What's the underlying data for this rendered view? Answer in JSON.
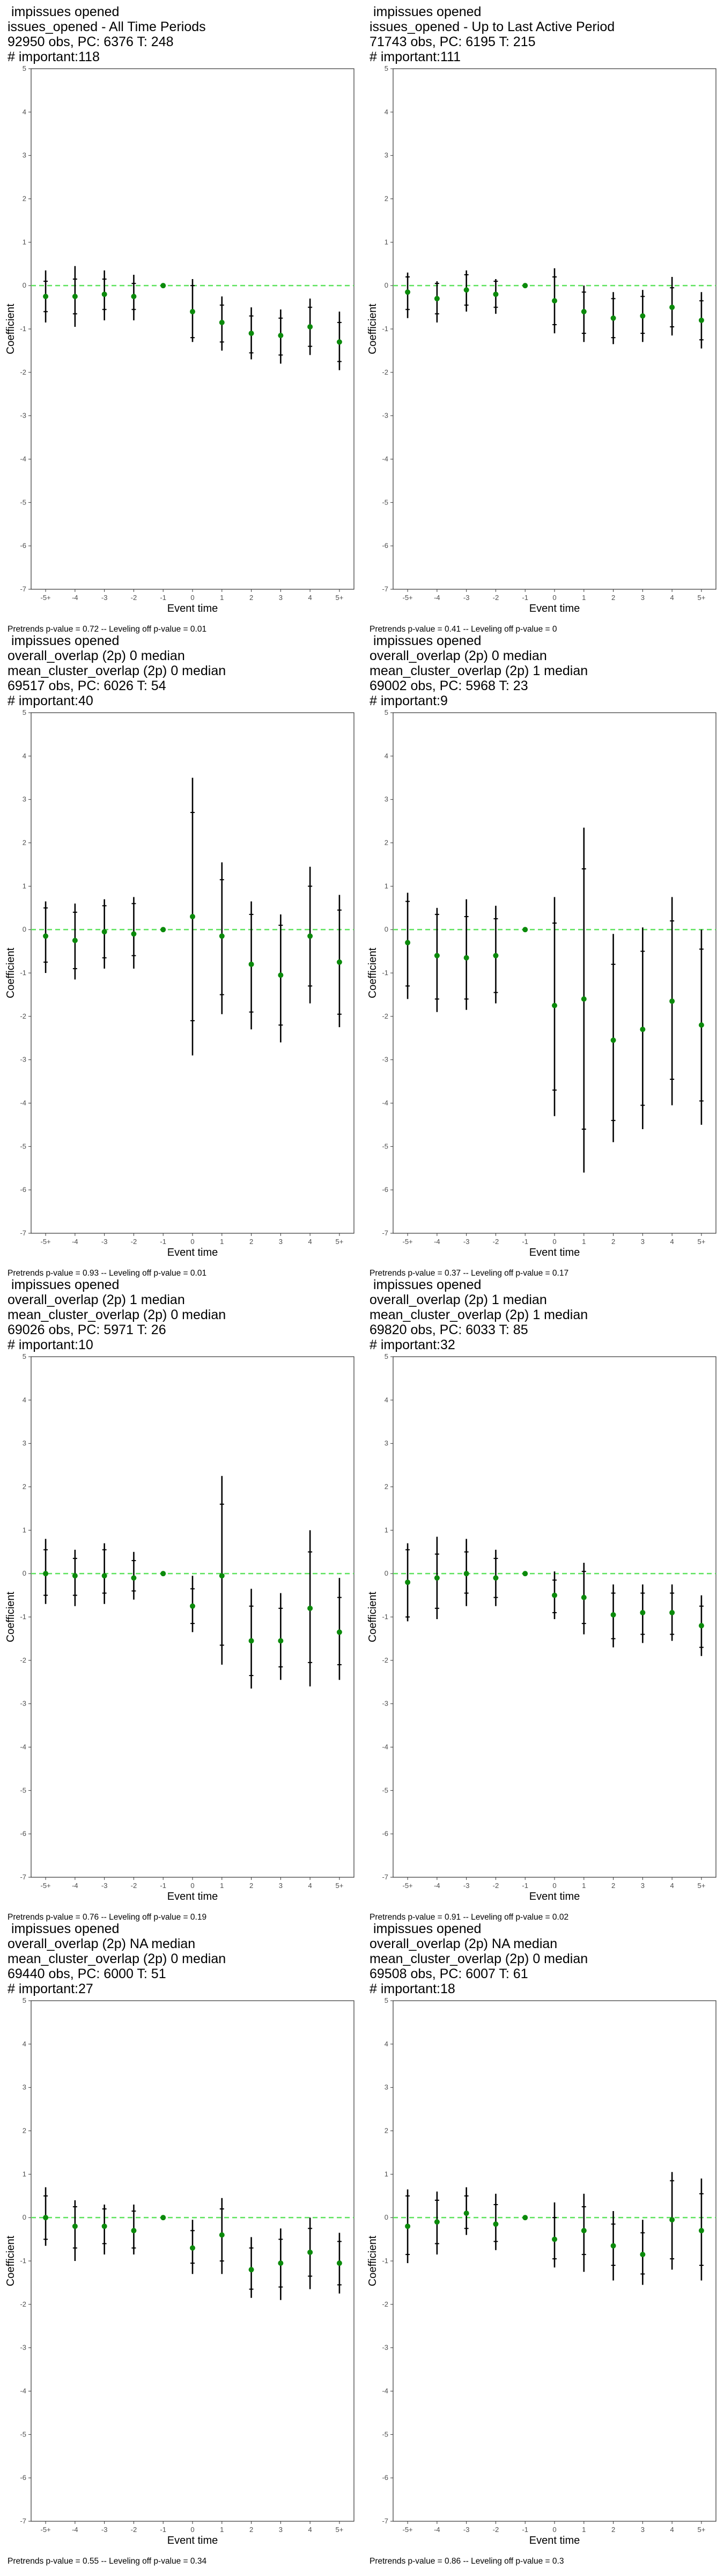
{
  "axis": {
    "xlabel": "Event time",
    "ylabel": "Coefficient",
    "xticks": [
      "-5+",
      "-4",
      "-3",
      "-2",
      "-1",
      "0",
      "1",
      "2",
      "3",
      "4",
      "5+"
    ],
    "ylim": [
      -7,
      5
    ],
    "yticks": [
      5,
      4,
      3,
      2,
      1,
      0,
      -1,
      -2,
      -3,
      -4,
      -5,
      -6,
      -7
    ]
  },
  "colors": {
    "point": "#0b8a0b",
    "zero_line": "#5fe35f",
    "bar": "#000000"
  },
  "chart_data": [
    {
      "type": "scatter",
      "title_lines": [
        " impissues opened",
        "issues_opened - All Time Periods",
        "92950 obs, PC: 6376 T: 248",
        "# important:118"
      ],
      "footer": "Pretrends p-value = 0.72 -- Leveling off p-value = 0.01",
      "x": [
        "-5+",
        "-4",
        "-3",
        "-2",
        "-1",
        "0",
        "1",
        "2",
        "3",
        "4",
        "5+"
      ],
      "estimate": [
        -0.25,
        -0.25,
        -0.2,
        -0.25,
        0,
        -0.6,
        -0.85,
        -1.1,
        -1.15,
        -0.95,
        -1.3
      ],
      "inner": [
        [
          -0.6,
          0.1
        ],
        [
          -0.65,
          0.15
        ],
        [
          -0.55,
          0.15
        ],
        [
          -0.55,
          0.05
        ],
        [
          0,
          0
        ],
        [
          -1.2,
          0.0
        ],
        [
          -1.3,
          -0.45
        ],
        [
          -1.55,
          -0.7
        ],
        [
          -1.6,
          -0.75
        ],
        [
          -1.4,
          -0.5
        ],
        [
          -1.75,
          -0.85
        ]
      ],
      "outer": [
        [
          -0.85,
          0.35
        ],
        [
          -0.95,
          0.45
        ],
        [
          -0.8,
          0.35
        ],
        [
          -0.8,
          0.25
        ],
        [
          0,
          0
        ],
        [
          -1.3,
          0.15
        ],
        [
          -1.5,
          -0.25
        ],
        [
          -1.7,
          -0.5
        ],
        [
          -1.8,
          -0.55
        ],
        [
          -1.6,
          -0.3
        ],
        [
          -1.95,
          -0.6
        ]
      ]
    },
    {
      "type": "scatter",
      "title_lines": [
        " impissues opened",
        "issues_opened - Up to Last Active Period",
        "71743 obs, PC: 6195 T: 215",
        "# important:111"
      ],
      "footer": "Pretrends p-value = 0.41 -- Leveling off p-value = 0",
      "x": [
        "-5+",
        "-4",
        "-3",
        "-2",
        "-1",
        "0",
        "1",
        "2",
        "3",
        "4",
        "5+"
      ],
      "estimate": [
        -0.15,
        -0.3,
        -0.1,
        -0.2,
        0,
        -0.35,
        -0.6,
        -0.75,
        -0.7,
        -0.5,
        -0.8
      ],
      "inner": [
        [
          -0.55,
          0.2
        ],
        [
          -0.65,
          0.05
        ],
        [
          -0.45,
          0.25
        ],
        [
          -0.5,
          0.1
        ],
        [
          0,
          0
        ],
        [
          -0.9,
          0.2
        ],
        [
          -1.1,
          -0.15
        ],
        [
          -1.2,
          -0.3
        ],
        [
          -1.1,
          -0.25
        ],
        [
          -0.95,
          -0.05
        ],
        [
          -1.25,
          -0.35
        ]
      ],
      "outer": [
        [
          -0.75,
          0.3
        ],
        [
          -0.85,
          0.1
        ],
        [
          -0.6,
          0.35
        ],
        [
          -0.65,
          0.15
        ],
        [
          0,
          0
        ],
        [
          -1.1,
          0.4
        ],
        [
          -1.3,
          0.0
        ],
        [
          -1.35,
          -0.15
        ],
        [
          -1.3,
          -0.1
        ],
        [
          -1.15,
          0.2
        ],
        [
          -1.45,
          -0.15
        ]
      ]
    },
    {
      "type": "scatter",
      "title_lines": [
        " impissues opened",
        "overall_overlap (2p) 0 median",
        "mean_cluster_overlap (2p) 0 median",
        "69517 obs, PC: 6026 T: 54",
        "# important:40"
      ],
      "footer": "Pretrends p-value = 0.93 -- Leveling off p-value = 0.01",
      "x": [
        "-5+",
        "-4",
        "-3",
        "-2",
        "-1",
        "0",
        "1",
        "2",
        "3",
        "4",
        "5+"
      ],
      "estimate": [
        -0.15,
        -0.25,
        -0.05,
        -0.1,
        0,
        0.3,
        -0.15,
        -0.8,
        -1.05,
        -0.15,
        -0.75
      ],
      "inner": [
        [
          -0.75,
          0.5
        ],
        [
          -0.9,
          0.4
        ],
        [
          -0.65,
          0.55
        ],
        [
          -0.6,
          0.6
        ],
        [
          0,
          0
        ],
        [
          -2.1,
          2.7
        ],
        [
          -1.5,
          1.15
        ],
        [
          -1.9,
          0.35
        ],
        [
          -2.2,
          0.1
        ],
        [
          -1.3,
          1.0
        ],
        [
          -1.95,
          0.45
        ]
      ],
      "outer": [
        [
          -1.0,
          0.65
        ],
        [
          -1.15,
          0.6
        ],
        [
          -0.9,
          0.7
        ],
        [
          -0.9,
          0.75
        ],
        [
          0,
          0
        ],
        [
          -2.9,
          3.5
        ],
        [
          -1.95,
          1.55
        ],
        [
          -2.3,
          0.65
        ],
        [
          -2.6,
          0.35
        ],
        [
          -1.7,
          1.45
        ],
        [
          -2.25,
          0.8
        ]
      ]
    },
    {
      "type": "scatter",
      "title_lines": [
        " impissues opened",
        "overall_overlap (2p) 0 median",
        "mean_cluster_overlap (2p) 1 median",
        "69002 obs, PC: 5968 T: 23",
        "# important:9"
      ],
      "footer": "Pretrends p-value = 0.37 -- Leveling off p-value = 0.17",
      "x": [
        "-5+",
        "-4",
        "-3",
        "-2",
        "-1",
        "0",
        "1",
        "2",
        "3",
        "4",
        "5+"
      ],
      "estimate": [
        -0.3,
        -0.6,
        -0.65,
        -0.6,
        0,
        -1.75,
        -1.6,
        -2.55,
        -2.3,
        -1.65,
        -2.2
      ],
      "inner": [
        [
          -1.3,
          0.65
        ],
        [
          -1.6,
          0.35
        ],
        [
          -1.6,
          0.3
        ],
        [
          -1.45,
          0.25
        ],
        [
          0,
          0
        ],
        [
          -3.7,
          0.15
        ],
        [
          -4.6,
          1.4
        ],
        [
          -4.4,
          -0.8
        ],
        [
          -4.05,
          -0.5
        ],
        [
          -3.45,
          0.2
        ],
        [
          -3.95,
          -0.45
        ]
      ],
      "outer": [
        [
          -1.6,
          0.85
        ],
        [
          -1.9,
          0.5
        ],
        [
          -1.85,
          0.7
        ],
        [
          -1.7,
          0.55
        ],
        [
          0,
          0
        ],
        [
          -4.3,
          0.75
        ],
        [
          -5.6,
          2.35
        ],
        [
          -4.9,
          -0.1
        ],
        [
          -4.6,
          0.05
        ],
        [
          -4.05,
          0.75
        ],
        [
          -4.5,
          0.0
        ]
      ]
    },
    {
      "type": "scatter",
      "title_lines": [
        " impissues opened",
        "overall_overlap (2p) 1 median",
        "mean_cluster_overlap (2p) 0 median",
        "69026 obs, PC: 5971 T: 26",
        "# important:10"
      ],
      "footer": "Pretrends p-value = 0.76 -- Leveling off p-value = 0.19",
      "x": [
        "-5+",
        "-4",
        "-3",
        "-2",
        "-1",
        "0",
        "1",
        "2",
        "3",
        "4",
        "5+"
      ],
      "estimate": [
        0.0,
        -0.05,
        -0.05,
        -0.1,
        0,
        -0.75,
        -0.05,
        -1.55,
        -1.55,
        -0.8,
        -1.35
      ],
      "inner": [
        [
          -0.5,
          0.55
        ],
        [
          -0.5,
          0.35
        ],
        [
          -0.45,
          0.55
        ],
        [
          -0.4,
          0.3
        ],
        [
          0,
          0
        ],
        [
          -1.15,
          -0.35
        ],
        [
          -1.65,
          1.6
        ],
        [
          -2.35,
          -0.75
        ],
        [
          -2.15,
          -0.8
        ],
        [
          -2.05,
          0.5
        ],
        [
          -2.1,
          -0.55
        ]
      ],
      "outer": [
        [
          -0.7,
          0.8
        ],
        [
          -0.75,
          0.55
        ],
        [
          -0.7,
          0.7
        ],
        [
          -0.6,
          0.5
        ],
        [
          0,
          0
        ],
        [
          -1.35,
          -0.05
        ],
        [
          -2.1,
          2.25
        ],
        [
          -2.65,
          -0.35
        ],
        [
          -2.45,
          -0.45
        ],
        [
          -2.6,
          1.0
        ],
        [
          -2.45,
          -0.1
        ]
      ]
    },
    {
      "type": "scatter",
      "title_lines": [
        " impissues opened",
        "overall_overlap (2p) 1 median",
        "mean_cluster_overlap (2p) 1 median",
        "69820 obs, PC: 6033 T: 85",
        "# important:32"
      ],
      "footer": "Pretrends p-value = 0.91 -- Leveling off p-value = 0.02",
      "x": [
        "-5+",
        "-4",
        "-3",
        "-2",
        "-1",
        "0",
        "1",
        "2",
        "3",
        "4",
        "5+"
      ],
      "estimate": [
        -0.2,
        -0.1,
        0.0,
        -0.1,
        0,
        -0.5,
        -0.55,
        -0.95,
        -0.9,
        -0.9,
        -1.2
      ],
      "inner": [
        [
          -1.0,
          0.55
        ],
        [
          -0.8,
          0.45
        ],
        [
          -0.45,
          0.5
        ],
        [
          -0.55,
          0.35
        ],
        [
          0,
          0
        ],
        [
          -0.9,
          -0.15
        ],
        [
          -1.15,
          0.05
        ],
        [
          -1.5,
          -0.45
        ],
        [
          -1.4,
          -0.45
        ],
        [
          -1.4,
          -0.45
        ],
        [
          -1.7,
          -0.75
        ]
      ],
      "outer": [
        [
          -1.1,
          0.7
        ],
        [
          -1.05,
          0.85
        ],
        [
          -0.75,
          0.8
        ],
        [
          -0.75,
          0.55
        ],
        [
          0,
          0
        ],
        [
          -1.05,
          0.05
        ],
        [
          -1.4,
          0.25
        ],
        [
          -1.7,
          -0.25
        ],
        [
          -1.6,
          -0.25
        ],
        [
          -1.55,
          -0.25
        ],
        [
          -1.9,
          -0.5
        ]
      ]
    },
    {
      "type": "scatter",
      "title_lines": [
        " impissues opened",
        "overall_overlap (2p) NA median",
        "mean_cluster_overlap (2p) 0 median",
        "69440 obs, PC: 6000 T: 51",
        "# important:27"
      ],
      "footer": "Pretrends p-value = 0.55 -- Leveling off p-value = 0.34",
      "x": [
        "-5+",
        "-4",
        "-3",
        "-2",
        "-1",
        "0",
        "1",
        "2",
        "3",
        "4",
        "5+"
      ],
      "estimate": [
        0.0,
        -0.2,
        -0.2,
        -0.3,
        0,
        -0.7,
        -0.4,
        -1.2,
        -1.05,
        -0.8,
        -1.05
      ],
      "inner": [
        [
          -0.5,
          0.5
        ],
        [
          -0.7,
          0.25
        ],
        [
          -0.6,
          0.2
        ],
        [
          -0.7,
          0.15
        ],
        [
          0,
          0
        ],
        [
          -1.05,
          -0.3
        ],
        [
          -1.0,
          0.2
        ],
        [
          -1.65,
          -0.7
        ],
        [
          -1.6,
          -0.5
        ],
        [
          -1.35,
          -0.25
        ],
        [
          -1.55,
          -0.55
        ]
      ],
      "outer": [
        [
          -0.65,
          0.7
        ],
        [
          -1.0,
          0.4
        ],
        [
          -0.85,
          0.3
        ],
        [
          -0.85,
          0.3
        ],
        [
          0,
          0
        ],
        [
          -1.3,
          -0.05
        ],
        [
          -1.3,
          0.45
        ],
        [
          -1.85,
          -0.45
        ],
        [
          -1.9,
          -0.25
        ],
        [
          -1.65,
          0.0
        ],
        [
          -1.75,
          -0.35
        ]
      ]
    },
    {
      "type": "scatter",
      "title_lines": [
        " impissues opened",
        "overall_overlap (2p) NA median",
        "mean_cluster_overlap (2p) 0 median",
        "69508 obs, PC: 6007 T: 61",
        "# important:18"
      ],
      "footer": "Pretrends p-value = 0.86 -- Leveling off p-value = 0.3",
      "x": [
        "-5+",
        "-4",
        "-3",
        "-2",
        "-1",
        "0",
        "1",
        "2",
        "3",
        "4",
        "5+"
      ],
      "estimate": [
        -0.2,
        -0.1,
        0.1,
        -0.15,
        0,
        -0.5,
        -0.3,
        -0.65,
        -0.85,
        -0.05,
        -0.3
      ],
      "inner": [
        [
          -0.85,
          0.5
        ],
        [
          -0.6,
          0.4
        ],
        [
          -0.25,
          0.5
        ],
        [
          -0.55,
          0.3
        ],
        [
          0,
          0
        ],
        [
          -0.95,
          0.0
        ],
        [
          -0.85,
          0.25
        ],
        [
          -1.1,
          -0.15
        ],
        [
          -1.3,
          -0.35
        ],
        [
          -0.95,
          0.85
        ],
        [
          -1.1,
          0.55
        ]
      ],
      "outer": [
        [
          -1.05,
          0.65
        ],
        [
          -0.85,
          0.6
        ],
        [
          -0.4,
          0.7
        ],
        [
          -0.75,
          0.55
        ],
        [
          0,
          0
        ],
        [
          -1.15,
          0.35
        ],
        [
          -1.25,
          0.55
        ],
        [
          -1.45,
          0.15
        ],
        [
          -1.55,
          -0.05
        ],
        [
          -1.2,
          1.05
        ],
        [
          -1.45,
          0.9
        ]
      ]
    }
  ]
}
